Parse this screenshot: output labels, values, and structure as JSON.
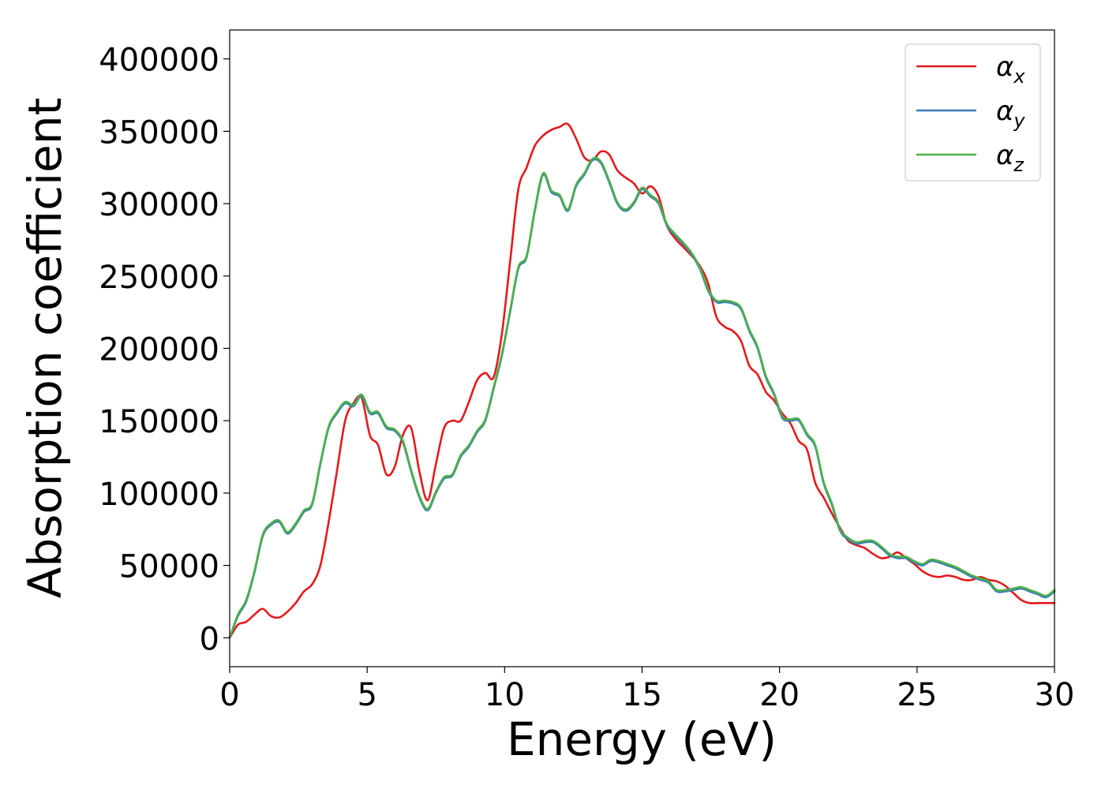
{
  "chart_data": {
    "type": "line",
    "title": "",
    "xlabel": "Energy (eV)",
    "ylabel": "Absorption coefficient",
    "xlim": [
      0,
      30
    ],
    "ylim": [
      -20000,
      420000
    ],
    "xticks": [
      0,
      5,
      10,
      15,
      20,
      25,
      30
    ],
    "xtick_labels": [
      "0",
      "5",
      "10",
      "15",
      "20",
      "25",
      "30"
    ],
    "yticks": [
      0,
      50000,
      100000,
      150000,
      200000,
      250000,
      300000,
      350000,
      400000
    ],
    "ytick_labels": [
      "0",
      "50000",
      "100000",
      "150000",
      "200000",
      "250000",
      "300000",
      "350000",
      "400000"
    ],
    "grid": false,
    "legend_position": "top-right",
    "series": [
      {
        "name": "αx",
        "symbol": "α",
        "subscript": "x",
        "color": "#e41a1c",
        "x": [
          0,
          0.3,
          0.6,
          0.9,
          1.2,
          1.5,
          1.8,
          2.1,
          2.4,
          2.7,
          3.0,
          3.3,
          3.6,
          3.9,
          4.2,
          4.5,
          4.8,
          5.1,
          5.4,
          5.7,
          6.0,
          6.3,
          6.6,
          6.9,
          7.2,
          7.5,
          7.8,
          8.1,
          8.4,
          8.7,
          9.0,
          9.3,
          9.6,
          9.9,
          10.2,
          10.5,
          10.8,
          11.1,
          11.4,
          11.7,
          12.0,
          12.3,
          12.6,
          12.9,
          13.2,
          13.5,
          13.8,
          14.1,
          14.4,
          14.7,
          15.0,
          15.3,
          15.6,
          15.9,
          16.2,
          16.5,
          16.8,
          17.1,
          17.4,
          17.7,
          18.0,
          18.3,
          18.6,
          18.9,
          19.2,
          19.5,
          19.8,
          20.1,
          20.4,
          20.7,
          21.0,
          21.3,
          21.6,
          21.9,
          22.2,
          22.5,
          22.8,
          23.1,
          23.4,
          23.7,
          24.0,
          24.3,
          24.6,
          24.9,
          25.2,
          25.5,
          25.8,
          26.1,
          26.4,
          26.7,
          27.0,
          27.3,
          27.6,
          27.9,
          28.2,
          28.5,
          28.8,
          29.1,
          29.4,
          29.7,
          30.0
        ],
        "y": [
          0,
          9000,
          11000,
          16000,
          20000,
          15000,
          14000,
          18000,
          24000,
          32000,
          37000,
          50000,
          80000,
          115000,
          150000,
          162000,
          166000,
          140000,
          133000,
          113000,
          118000,
          140000,
          145000,
          115000,
          95000,
          120000,
          145000,
          150000,
          150000,
          163000,
          178000,
          183000,
          180000,
          210000,
          260000,
          310000,
          325000,
          340000,
          347000,
          351000,
          353000,
          355000,
          345000,
          332000,
          330000,
          336000,
          334000,
          323000,
          318000,
          314000,
          307000,
          312000,
          305000,
          285000,
          276000,
          270000,
          264000,
          257000,
          245000,
          222000,
          215000,
          212000,
          205000,
          188000,
          182000,
          170000,
          164000,
          155000,
          148000,
          136000,
          130000,
          107000,
          97000,
          86000,
          76000,
          67000,
          64000,
          62000,
          58000,
          55000,
          56000,
          59000,
          55000,
          51000,
          46000,
          43000,
          42000,
          43000,
          42000,
          40000,
          40000,
          42000,
          40000,
          39000,
          36000,
          31000,
          26000,
          24000,
          24000,
          24000,
          24000
        ]
      },
      {
        "name": "αy",
        "symbol": "α",
        "subscript": "y",
        "color": "#377eb8",
        "x": [
          0,
          0.3,
          0.6,
          0.9,
          1.2,
          1.5,
          1.8,
          2.1,
          2.4,
          2.7,
          3.0,
          3.3,
          3.6,
          3.9,
          4.2,
          4.5,
          4.8,
          5.1,
          5.4,
          5.7,
          6.0,
          6.3,
          6.6,
          6.9,
          7.2,
          7.5,
          7.8,
          8.1,
          8.4,
          8.7,
          9.0,
          9.3,
          9.6,
          9.9,
          10.2,
          10.5,
          10.8,
          11.1,
          11.4,
          11.7,
          12.0,
          12.3,
          12.6,
          12.9,
          13.2,
          13.5,
          13.8,
          14.1,
          14.4,
          14.7,
          15.0,
          15.3,
          15.6,
          15.9,
          16.2,
          16.5,
          16.8,
          17.1,
          17.4,
          17.7,
          18.0,
          18.3,
          18.6,
          18.9,
          19.2,
          19.5,
          19.8,
          20.1,
          20.4,
          20.7,
          21.0,
          21.3,
          21.6,
          21.9,
          22.2,
          22.5,
          22.8,
          23.1,
          23.4,
          23.7,
          24.0,
          24.3,
          24.6,
          24.9,
          25.2,
          25.5,
          25.8,
          26.1,
          26.4,
          26.7,
          27.0,
          27.3,
          27.6,
          27.9,
          28.2,
          28.5,
          28.8,
          29.1,
          29.4,
          29.7,
          30.0
        ],
        "y": [
          0,
          15000,
          25000,
          45000,
          70000,
          78000,
          80000,
          72000,
          78000,
          87000,
          92000,
          120000,
          145000,
          155000,
          162000,
          160000,
          167000,
          155000,
          155000,
          145000,
          143000,
          135000,
          115000,
          97000,
          88000,
          100000,
          110000,
          112000,
          125000,
          132000,
          142000,
          150000,
          172000,
          195000,
          225000,
          255000,
          263000,
          295000,
          320000,
          308000,
          305000,
          295000,
          312000,
          320000,
          330000,
          328000,
          315000,
          300000,
          295000,
          300000,
          310000,
          305000,
          300000,
          285000,
          278000,
          272000,
          265000,
          255000,
          240000,
          232000,
          232000,
          231000,
          227000,
          212000,
          200000,
          180000,
          168000,
          152000,
          150000,
          150000,
          140000,
          132000,
          107000,
          92000,
          74000,
          68000,
          65000,
          66000,
          66000,
          62000,
          57000,
          55000,
          55000,
          52000,
          50000,
          53000,
          52000,
          50000,
          48000,
          45000,
          42000,
          40000,
          38000,
          32000,
          32000,
          33000,
          34000,
          32000,
          30000,
          28000,
          32000
        ]
      },
      {
        "name": "αz",
        "symbol": "α",
        "subscript": "z",
        "color": "#4daf4a",
        "x": [
          0,
          0.3,
          0.6,
          0.9,
          1.2,
          1.5,
          1.8,
          2.1,
          2.4,
          2.7,
          3.0,
          3.3,
          3.6,
          3.9,
          4.2,
          4.5,
          4.8,
          5.1,
          5.4,
          5.7,
          6.0,
          6.3,
          6.6,
          6.9,
          7.2,
          7.5,
          7.8,
          8.1,
          8.4,
          8.7,
          9.0,
          9.3,
          9.6,
          9.9,
          10.2,
          10.5,
          10.8,
          11.1,
          11.4,
          11.7,
          12.0,
          12.3,
          12.6,
          12.9,
          13.2,
          13.5,
          13.8,
          14.1,
          14.4,
          14.7,
          15.0,
          15.3,
          15.6,
          15.9,
          16.2,
          16.5,
          16.8,
          17.1,
          17.4,
          17.7,
          18.0,
          18.3,
          18.6,
          18.9,
          19.2,
          19.5,
          19.8,
          20.1,
          20.4,
          20.7,
          21.0,
          21.3,
          21.6,
          21.9,
          22.2,
          22.5,
          22.8,
          23.1,
          23.4,
          23.7,
          24.0,
          24.3,
          24.6,
          24.9,
          25.2,
          25.5,
          25.8,
          26.1,
          26.4,
          26.7,
          27.0,
          27.3,
          27.6,
          27.9,
          28.2,
          28.5,
          28.8,
          29.1,
          29.4,
          29.7,
          30.0
        ],
        "y": [
          0,
          16000,
          26000,
          46000,
          71000,
          79000,
          81000,
          73000,
          79000,
          88000,
          93000,
          121000,
          146000,
          156000,
          163000,
          161000,
          168000,
          156000,
          156000,
          146000,
          144000,
          136000,
          116000,
          98000,
          89000,
          101000,
          111000,
          113000,
          126000,
          133000,
          143000,
          151000,
          173000,
          196000,
          226000,
          256000,
          264000,
          296000,
          321000,
          309000,
          306000,
          296000,
          313000,
          321000,
          331000,
          329000,
          316000,
          301000,
          296000,
          301000,
          311000,
          306000,
          301000,
          286000,
          279000,
          273000,
          266000,
          256000,
          241000,
          233000,
          233000,
          232000,
          228000,
          213000,
          201000,
          181000,
          169000,
          153000,
          151000,
          151000,
          141000,
          133000,
          108000,
          93000,
          75000,
          69000,
          66000,
          67000,
          67000,
          63000,
          58000,
          56000,
          56000,
          53000,
          51000,
          54000,
          53000,
          51000,
          49000,
          46000,
          43000,
          41000,
          39000,
          33000,
          33000,
          34000,
          35000,
          33000,
          31000,
          29000,
          33000
        ]
      }
    ]
  }
}
